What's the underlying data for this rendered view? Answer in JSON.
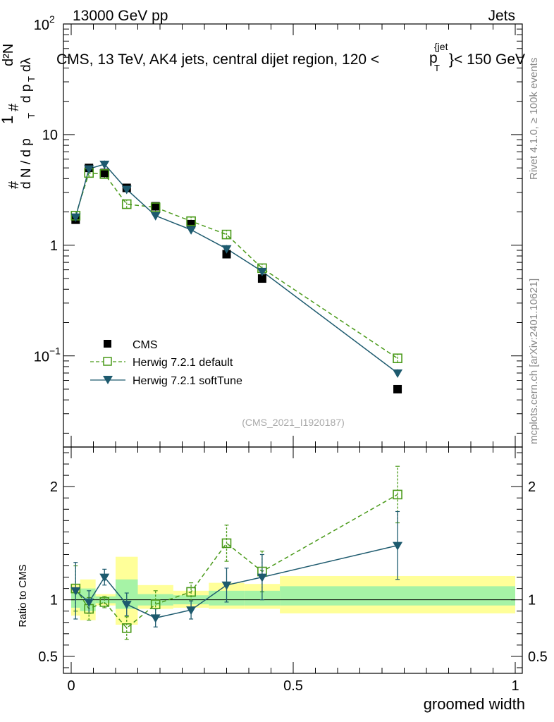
{
  "header": {
    "left": "13000 GeV pp",
    "right": "Jets"
  },
  "plot_title": "CMS, 13 TeV, AK4 jets, central dijet region, 120 <",
  "plot_title_pt": "p",
  "plot_title_sup": "{jet",
  "plot_title_sub": "T",
  "plot_title_tail": "}< 150 GeV",
  "watermark": "(CMS_2021_I1920187)",
  "side_text_top": "Rivet 4.1.0, ≥ 100k events",
  "side_text_bottom": "mcplots.cern.ch [arXiv:2401.10621]",
  "y_axis_main": {
    "hash1": "#",
    "one": "1",
    "dN": "d N / d p",
    "dN_sub": "T",
    "hash2": "#",
    "d2N": "d²N",
    "dpdl": "d p",
    "dpdl_sub": "T",
    "dlambda": " dλ"
  },
  "y_axis_ratio_label": "Ratio to CMS",
  "colors": {
    "cms": "#000000",
    "default": "#4a9a1a",
    "softtune": "#1d5a6e",
    "band_inner": "#a6f3a6",
    "band_outer": "#ffff99"
  },
  "chart_data": [
    {
      "type": "scatter",
      "title": "CMS, 13 TeV, AK4 jets, central dijet region, 120 < pT(jet) < 150 GeV",
      "xlabel": "groomed width",
      "ylabel": "(1/dN/dpT) d²N/dpT dλ",
      "yscale": "log",
      "xlim": [
        0,
        1
      ],
      "ylim": [
        0.015,
        100
      ],
      "yticks": [
        {
          "value": 0.1,
          "base": "10",
          "exp": "−1"
        },
        {
          "value": 1,
          "label": "1"
        },
        {
          "value": 10,
          "label": "10"
        },
        {
          "value": 100,
          "base": "10",
          "exp": "2"
        }
      ],
      "legend": [
        "CMS",
        "Herwig 7.2.1 default",
        "Herwig 7.2.1 softTune"
      ],
      "legend_position": "lower-left",
      "bins": [
        [
          0,
          0.02
        ],
        [
          0.02,
          0.055
        ],
        [
          0.055,
          0.1
        ],
        [
          0.1,
          0.15
        ],
        [
          0.15,
          0.23
        ],
        [
          0.23,
          0.31
        ],
        [
          0.31,
          0.39
        ],
        [
          0.39,
          0.47
        ],
        [
          0.47,
          1.0
        ]
      ],
      "series": [
        {
          "name": "CMS",
          "marker": "filled-square",
          "x": [
            0.01,
            0.04,
            0.075,
            0.125,
            0.19,
            0.27,
            0.35,
            0.43,
            0.735
          ],
          "y": [
            1.7,
            5.0,
            4.5,
            3.3,
            2.25,
            1.55,
            0.83,
            0.5,
            0.05
          ]
        },
        {
          "name": "Herwig 7.2.1 default",
          "marker": "open-square",
          "line": "dashed",
          "x": [
            0.01,
            0.04,
            0.075,
            0.125,
            0.19,
            0.27,
            0.35,
            0.43,
            0.735
          ],
          "y": [
            1.85,
            4.5,
            4.4,
            2.35,
            2.2,
            1.65,
            1.25,
            0.62,
            0.095
          ]
        },
        {
          "name": "Herwig 7.2.1 softTune",
          "marker": "filled-triangle-down",
          "line": "solid",
          "x": [
            0.01,
            0.04,
            0.075,
            0.125,
            0.19,
            0.27,
            0.35,
            0.43,
            0.735
          ],
          "y": [
            1.8,
            4.9,
            5.4,
            3.2,
            1.85,
            1.38,
            0.93,
            0.58,
            0.07
          ]
        }
      ]
    },
    {
      "type": "scatter",
      "xlabel": "groomed width",
      "ylabel": "Ratio to CMS",
      "xlim": [
        0,
        1
      ],
      "ylim": [
        0.35,
        2.35
      ],
      "xticks": [
        {
          "value": 0,
          "label": "0"
        },
        {
          "value": 0.5,
          "label": "0.5"
        },
        {
          "value": 1,
          "label": "1"
        }
      ],
      "yticks": [
        {
          "value": 0.5,
          "label": "0.5"
        },
        {
          "value": 1,
          "label": "1"
        },
        {
          "value": 2,
          "label": "2"
        }
      ],
      "bands": [
        {
          "x": [
            0,
            0.02
          ],
          "inner": [
            0.93,
            1.07
          ],
          "outer": [
            0.86,
            1.14
          ]
        },
        {
          "x": [
            0.02,
            0.055
          ],
          "inner": [
            0.9,
            1.1
          ],
          "outer": [
            0.82,
            1.18
          ]
        },
        {
          "x": [
            0.055,
            0.1
          ],
          "inner": [
            0.97,
            1.03
          ],
          "outer": [
            0.95,
            1.05
          ]
        },
        {
          "x": [
            0.1,
            0.15
          ],
          "inner": [
            0.92,
            1.18
          ],
          "outer": [
            0.78,
            1.38
          ]
        },
        {
          "x": [
            0.15,
            0.23
          ],
          "inner": [
            0.95,
            1.05
          ],
          "outer": [
            0.92,
            1.13
          ]
        },
        {
          "x": [
            0.23,
            0.31
          ],
          "inner": [
            0.96,
            1.04
          ],
          "outer": [
            0.93,
            1.08
          ]
        },
        {
          "x": [
            0.31,
            0.39
          ],
          "inner": [
            0.95,
            1.08
          ],
          "outer": [
            0.92,
            1.15
          ]
        },
        {
          "x": [
            0.39,
            0.47
          ],
          "inner": [
            0.95,
            1.08
          ],
          "outer": [
            0.92,
            1.14
          ]
        },
        {
          "x": [
            0.47,
            1.0
          ],
          "inner": [
            0.95,
            1.12
          ],
          "outer": [
            0.88,
            1.21
          ]
        }
      ],
      "series": [
        {
          "name": "Herwig 7.2.1 default",
          "x": [
            0.01,
            0.04,
            0.075,
            0.125,
            0.19,
            0.27,
            0.35,
            0.43,
            0.735
          ],
          "y": [
            1.1,
            0.92,
            0.98,
            0.75,
            0.96,
            1.07,
            1.5,
            1.25,
            1.93
          ],
          "err": [
            0.2,
            0.1,
            0.05,
            0.1,
            0.12,
            0.08,
            0.16,
            0.18,
            0.25
          ]
        },
        {
          "name": "Herwig 7.2.1 softTune",
          "x": [
            0.01,
            0.04,
            0.075,
            0.125,
            0.19,
            0.27,
            0.35,
            0.43,
            0.735
          ],
          "y": [
            1.08,
            0.98,
            1.2,
            0.96,
            0.84,
            0.91,
            1.13,
            1.2,
            1.48
          ],
          "err": [
            0.25,
            0.1,
            0.07,
            0.1,
            0.08,
            0.08,
            0.15,
            0.2,
            0.3
          ]
        }
      ]
    }
  ]
}
